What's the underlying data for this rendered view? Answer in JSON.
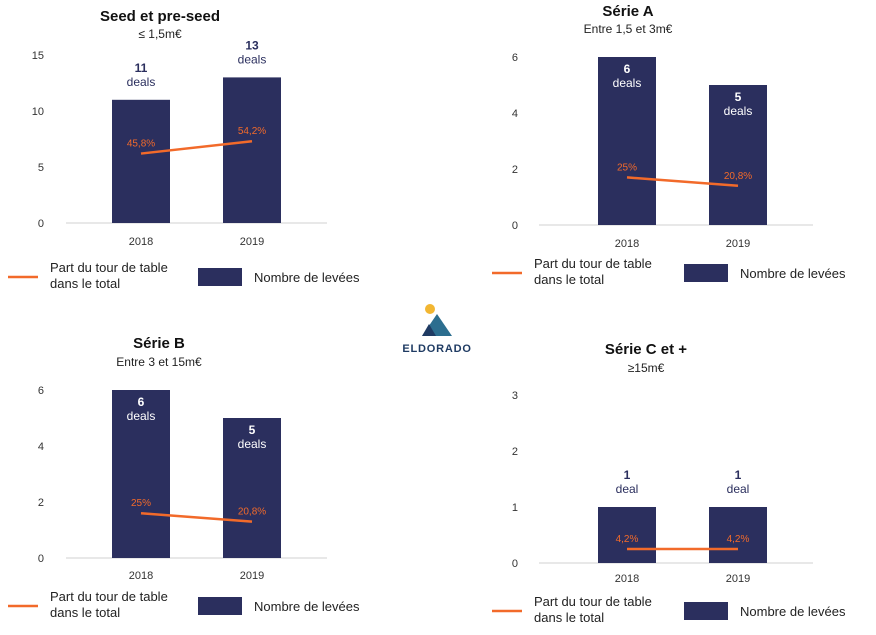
{
  "brand": {
    "name": "ELDORADO",
    "logo_icon": "mountain-sun-icon",
    "colors": {
      "navy": "#1f3b63",
      "teal": "#2c6e8f",
      "sun": "#f2b632"
    }
  },
  "colors": {
    "bar": "#2b2f5e",
    "line": "#f26a2a",
    "label_text": "#f26a2a",
    "bar_label_dark": "#2b2f5e",
    "bar_label_light": "#ffffff",
    "axis_text": "#333333",
    "grid": "#d0d0d0"
  },
  "legend": {
    "line_label_1": "Part du tour de table",
    "line_label_2": "dans le total",
    "bar_label": "Nombre de levées"
  },
  "chart_data": [
    {
      "type": "bar",
      "title": "Seed et pre-seed",
      "subtitle": "≤ 1,5m€",
      "categories": [
        "2018",
        "2019"
      ],
      "values": [
        11,
        13
      ],
      "bar_labels": [
        [
          "11",
          "deals"
        ],
        [
          "13",
          "deals"
        ]
      ],
      "line_values": [
        6.2,
        7.3
      ],
      "line_labels": [
        "45,8%",
        "54,2%"
      ],
      "ylim": [
        0,
        15
      ],
      "yticks": [
        0,
        5,
        10,
        15
      ],
      "grid": false
    },
    {
      "type": "bar",
      "title": "Série A",
      "subtitle": "Entre 1,5 et 3m€",
      "categories": [
        "2018",
        "2019"
      ],
      "values": [
        6,
        5
      ],
      "bar_labels": [
        [
          "6",
          "deals"
        ],
        [
          "5",
          "deals"
        ]
      ],
      "line_values": [
        1.7,
        1.4
      ],
      "line_labels": [
        "25%",
        "20,8%"
      ],
      "ylim": [
        0,
        6
      ],
      "yticks": [
        0,
        2,
        4,
        6
      ],
      "grid": false
    },
    {
      "type": "bar",
      "title": "Série B",
      "subtitle": "Entre 3 et 15m€",
      "categories": [
        "2018",
        "2019"
      ],
      "values": [
        6,
        5
      ],
      "bar_labels": [
        [
          "6",
          "deals"
        ],
        [
          "5",
          "deals"
        ]
      ],
      "line_values": [
        1.6,
        1.3
      ],
      "line_labels": [
        "25%",
        "20,8%"
      ],
      "ylim": [
        0,
        6
      ],
      "yticks": [
        0,
        2,
        4,
        6
      ],
      "grid": false
    },
    {
      "type": "bar",
      "title": "Série C et +",
      "subtitle": "≥15m€",
      "categories": [
        "2018",
        "2019"
      ],
      "values": [
        1,
        1
      ],
      "bar_labels": [
        [
          "1",
          "deal"
        ],
        [
          "1",
          "deal"
        ]
      ],
      "line_values": [
        0.25,
        0.25
      ],
      "line_labels": [
        "4,2%",
        "4,2%"
      ],
      "ylim": [
        0,
        3
      ],
      "yticks": [
        0,
        1,
        2,
        3
      ],
      "grid": false
    }
  ]
}
